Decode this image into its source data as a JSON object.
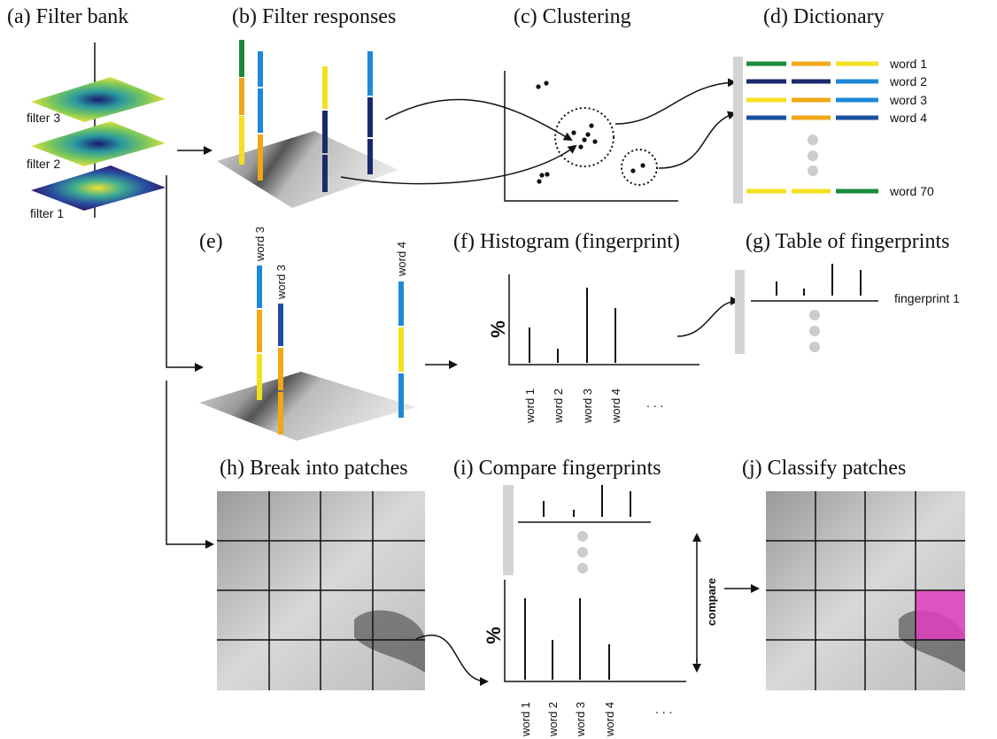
{
  "panels": [
    "(a) Filter bank",
    "(b) Filter responses",
    "(c) Clustering",
    "(d) Dictionary",
    "(e)",
    "(f) Histogram (fingerprint)",
    "(g) Table of fingerprints",
    "(h) Break into patches",
    "(i) Compare fingerprints",
    "(j) Classify patches"
  ],
  "filters": [
    "filter 3",
    "filter 2",
    "filter 1"
  ],
  "dictionary": [
    "word 1",
    "word 2",
    "word 3",
    "word 4",
    "word 70"
  ],
  "response_words": [
    "word 3",
    "word 3",
    "word 4"
  ],
  "histogram": {
    "y_label": "%",
    "x_labels": [
      "word 1",
      "word 2",
      "word 3",
      "word 4"
    ],
    "ellipsis": ". . ."
  },
  "table": {
    "row_label": "fingerprint 1"
  },
  "compare": {
    "label": "compare",
    "y_label": "%",
    "x_labels": [
      "word 1",
      "word 2",
      "word 3",
      "word 4"
    ],
    "ellipsis": ". . ."
  }
}
